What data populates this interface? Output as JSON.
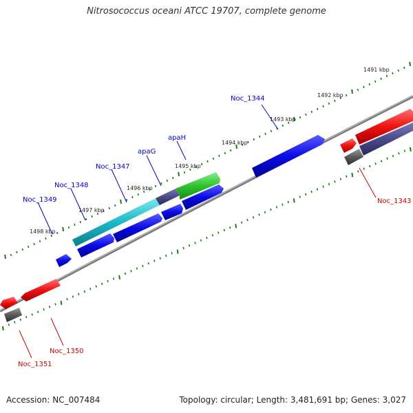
{
  "title": "Nitrosococcus oceani ATCC 19707, complete genome",
  "footer": {
    "accession": "Accession: NC_007484",
    "topology": "Topology: circular; Length: 3,481,691 bp; Genes: 3,027"
  },
  "colors": {
    "background": "#ffffff",
    "backbone": "#7a7a7a",
    "tick": "#1a7a1a",
    "tick_label": "#222222",
    "label_blue": "#0000cc",
    "label_red": "#cc0000",
    "gene_blue": "#0a0ae6",
    "gene_red": "#ee1111",
    "gene_cyan": "#1ab8c8",
    "gene_green": "#2ec42e",
    "gene_slate": "#4a4a88",
    "gene_gray": "#5a5a5a"
  },
  "scale_labels": [
    "1491 kbp",
    "1492 kbp",
    "1493 kbp",
    "1494 kbp",
    "1495 kbp",
    "1496 kbp",
    "1497 kbp",
    "1498 kbp"
  ],
  "gene_labels": {
    "top": [
      "Noc_1344",
      "apaH",
      "apaG",
      "Noc_1347",
      "Noc_1348",
      "Noc_1349"
    ],
    "bottom": [
      "Noc_1343",
      "Noc_1350",
      "Noc_1351"
    ]
  }
}
